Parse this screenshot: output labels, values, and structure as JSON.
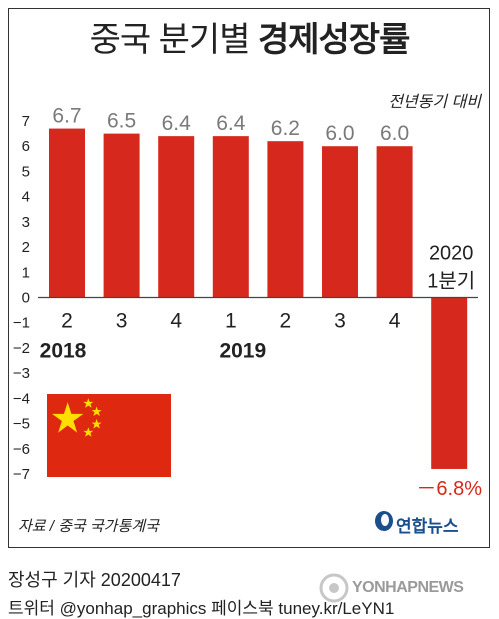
{
  "header": {
    "title_regular": "중국 분기별",
    "title_bold": "경제성장률",
    "note": "전년동기 대비"
  },
  "chart_data": {
    "type": "bar",
    "title": "중국 분기별 경제성장률",
    "ylabel": "",
    "xlabel": "",
    "ylim": [
      -7,
      7
    ],
    "yticks": [
      "7",
      "6",
      "5",
      "4",
      "3",
      "2",
      "1",
      "0",
      "−1",
      "−2",
      "−3",
      "−4",
      "−5",
      "−6",
      "−7"
    ],
    "categories": [
      "2",
      "3",
      "4",
      "1",
      "2",
      "3",
      "4",
      "1분기"
    ],
    "year_labels": [
      "2018",
      "2019",
      "2020"
    ],
    "values": [
      6.7,
      6.5,
      6.4,
      6.4,
      6.2,
      6.0,
      6.0,
      -6.8
    ],
    "value_labels": [
      "6.7",
      "6.5",
      "6.4",
      "6.4",
      "6.2",
      "6.0",
      "6.0",
      "－6.8%"
    ],
    "bar_color": "#d7281d",
    "grid": false
  },
  "source": "자료 / 중국 국가통계국",
  "brand": "연합뉴스",
  "footer": {
    "reporter": "장성구 기자  20200417",
    "social": "트위터 @yonhap_graphics  페이스북 tuney.kr/LeYN1"
  },
  "watermark": "YONHAPNEWS",
  "colors": {
    "bar": "#d7281d",
    "flag_red": "#de2910",
    "flag_star": "#ffde00",
    "brand_blue": "#1a4f8c"
  }
}
